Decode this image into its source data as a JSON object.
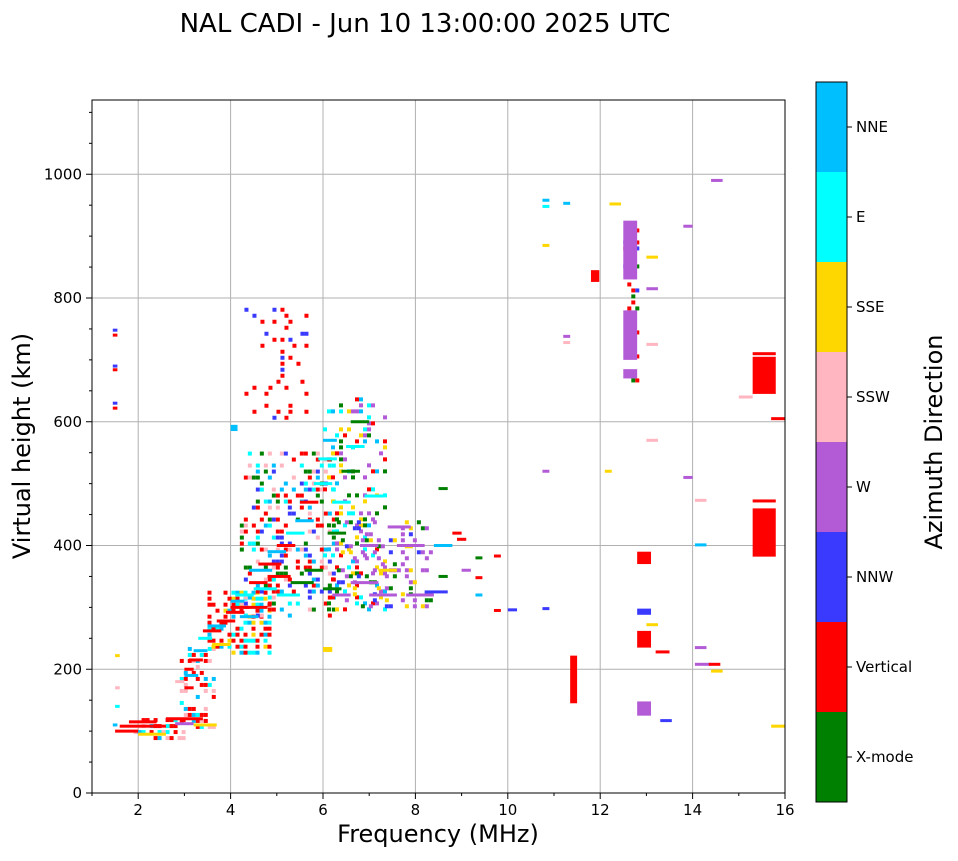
{
  "chart_data": {
    "type": "scatter",
    "title": "NAL CADI - Jun 10 13:00:00 2025 UTC",
    "xlabel": "Frequency (MHz)",
    "ylabel": "Virtual height (km)",
    "xlim": [
      1,
      16
    ],
    "ylim": [
      0,
      1120
    ],
    "xticks": [
      2,
      4,
      6,
      8,
      10,
      12,
      14,
      16
    ],
    "yticks": [
      0,
      200,
      400,
      600,
      800,
      1000
    ],
    "grid": true,
    "colorbar": {
      "label": "Azimuth Direction",
      "categories": [
        {
          "name": "X-mode",
          "color": "#008000"
        },
        {
          "name": "Vertical",
          "color": "#ff0000"
        },
        {
          "name": "NNW",
          "color": "#3a3aff"
        },
        {
          "name": "W",
          "color": "#b35ad6"
        },
        {
          "name": "SSW",
          "color": "#ffb6c1"
        },
        {
          "name": "SSE",
          "color": "#ffd700"
        },
        {
          "name": "E",
          "color": "#00ffff"
        },
        {
          "name": "NNE",
          "color": "#00bfff"
        }
      ]
    },
    "segments": [
      {
        "f1": 1.45,
        "f2": 1.55,
        "h": 748,
        "c": "NNW"
      },
      {
        "f1": 1.45,
        "f2": 1.55,
        "h": 740,
        "c": "Vertical"
      },
      {
        "f1": 1.45,
        "f2": 1.55,
        "h": 690,
        "c": "NNW"
      },
      {
        "f1": 1.45,
        "f2": 1.55,
        "h": 684,
        "c": "Vertical"
      },
      {
        "f1": 1.45,
        "f2": 1.55,
        "h": 630,
        "c": "NNW"
      },
      {
        "f1": 1.45,
        "f2": 1.55,
        "h": 622,
        "c": "Vertical"
      },
      {
        "f1": 1.45,
        "f2": 1.55,
        "h": 110,
        "c": "NNE"
      },
      {
        "f1": 1.5,
        "f2": 1.6,
        "h": 222,
        "c": "SSE"
      },
      {
        "f1": 1.5,
        "f2": 1.6,
        "h": 170,
        "c": "SSW"
      },
      {
        "f1": 1.5,
        "f2": 1.6,
        "h": 140,
        "c": "E"
      },
      {
        "f1": 1.5,
        "f2": 2.0,
        "h": 100,
        "c": "Vertical"
      },
      {
        "f1": 1.6,
        "f2": 2.6,
        "h": 108,
        "c": "Vertical"
      },
      {
        "f1": 1.8,
        "f2": 2.4,
        "h": 115,
        "c": "Vertical"
      },
      {
        "f1": 2.0,
        "f2": 2.6,
        "h": 95,
        "c": "SSE"
      },
      {
        "f1": 2.6,
        "f2": 3.4,
        "h": 120,
        "c": "Vertical"
      },
      {
        "f1": 2.8,
        "f2": 3.2,
        "h": 112,
        "c": "W"
      },
      {
        "f1": 3.2,
        "f2": 3.7,
        "h": 110,
        "c": "SSE"
      },
      {
        "f1": 2.8,
        "f2": 3.0,
        "h": 180,
        "c": "SSW"
      },
      {
        "f1": 3.0,
        "f2": 3.2,
        "h": 200,
        "c": "Vertical"
      },
      {
        "f1": 3.0,
        "f2": 3.3,
        "h": 190,
        "c": "NNE"
      },
      {
        "f1": 3.0,
        "f2": 3.2,
        "h": 170,
        "c": "Vertical"
      },
      {
        "f1": 3.1,
        "f2": 3.4,
        "h": 215,
        "c": "Vertical"
      },
      {
        "f1": 3.2,
        "f2": 3.5,
        "h": 230,
        "c": "NNE"
      },
      {
        "f1": 3.3,
        "f2": 3.6,
        "h": 250,
        "c": "E"
      },
      {
        "f1": 3.4,
        "f2": 3.8,
        "h": 262,
        "c": "Vertical"
      },
      {
        "f1": 3.5,
        "f2": 3.9,
        "h": 270,
        "c": "NNE"
      },
      {
        "f1": 3.6,
        "f2": 4.0,
        "h": 240,
        "c": "SSE"
      },
      {
        "f1": 3.7,
        "f2": 4.1,
        "h": 278,
        "c": "Vertical"
      },
      {
        "f1": 3.9,
        "f2": 4.3,
        "h": 292,
        "c": "Vertical"
      },
      {
        "f1": 4.0,
        "f2": 4.4,
        "h": 300,
        "c": "Vertical"
      },
      {
        "f1": 4.0,
        "f2": 4.3,
        "h": 310,
        "c": "NNE"
      },
      {
        "f1": 4.1,
        "f2": 4.5,
        "h": 320,
        "c": "E"
      },
      {
        "f1": 4.2,
        "f2": 4.6,
        "h": 285,
        "c": "NNE"
      },
      {
        "f1": 4.3,
        "f2": 4.8,
        "h": 300,
        "c": "Vertical"
      },
      {
        "f1": 4.4,
        "f2": 4.8,
        "h": 340,
        "c": "Vertical"
      },
      {
        "f1": 4.4,
        "f2": 4.9,
        "h": 360,
        "c": "NNE"
      },
      {
        "f1": 4.5,
        "f2": 5.0,
        "h": 330,
        "c": "E"
      },
      {
        "f1": 4.6,
        "f2": 5.1,
        "h": 370,
        "c": "Vertical"
      },
      {
        "f1": 4.8,
        "f2": 5.3,
        "h": 350,
        "c": "Vertical"
      },
      {
        "f1": 4.8,
        "f2": 5.2,
        "h": 390,
        "c": "NNE"
      },
      {
        "f1": 5.0,
        "f2": 5.4,
        "h": 400,
        "c": "Vertical"
      },
      {
        "f1": 5.0,
        "f2": 5.5,
        "h": 320,
        "c": "E"
      },
      {
        "f1": 5.2,
        "f2": 5.6,
        "h": 420,
        "c": "E"
      },
      {
        "f1": 5.3,
        "f2": 5.8,
        "h": 340,
        "c": "X-mode"
      },
      {
        "f1": 5.4,
        "f2": 5.8,
        "h": 440,
        "c": "NNE"
      },
      {
        "f1": 5.5,
        "f2": 5.9,
        "h": 470,
        "c": "Vertical"
      },
      {
        "f1": 5.6,
        "f2": 6.0,
        "h": 360,
        "c": "X-mode"
      },
      {
        "f1": 5.8,
        "f2": 6.2,
        "h": 500,
        "c": "E"
      },
      {
        "f1": 5.9,
        "f2": 6.3,
        "h": 540,
        "c": "E"
      },
      {
        "f1": 6.0,
        "f2": 6.4,
        "h": 330,
        "c": "X-mode"
      },
      {
        "f1": 6.0,
        "f2": 6.3,
        "h": 570,
        "c": "NNE"
      },
      {
        "f1": 6.1,
        "f2": 6.5,
        "h": 420,
        "c": "X-mode"
      },
      {
        "f1": 6.2,
        "f2": 6.6,
        "h": 320,
        "c": "W"
      },
      {
        "f1": 6.2,
        "f2": 6.6,
        "h": 470,
        "c": "E"
      },
      {
        "f1": 6.4,
        "f2": 6.8,
        "h": 520,
        "c": "X-mode"
      },
      {
        "f1": 6.5,
        "f2": 6.9,
        "h": 560,
        "c": "E"
      },
      {
        "f1": 6.6,
        "f2": 7.0,
        "h": 600,
        "c": "X-mode"
      },
      {
        "f1": 6.6,
        "f2": 7.2,
        "h": 340,
        "c": "W"
      },
      {
        "f1": 6.8,
        "f2": 7.2,
        "h": 400,
        "c": "W"
      },
      {
        "f1": 6.9,
        "f2": 7.3,
        "h": 480,
        "c": "E"
      },
      {
        "f1": 7.0,
        "f2": 7.6,
        "h": 320,
        "c": "W"
      },
      {
        "f1": 7.2,
        "f2": 7.6,
        "h": 360,
        "c": "SSE"
      },
      {
        "f1": 7.4,
        "f2": 7.9,
        "h": 430,
        "c": "W"
      },
      {
        "f1": 7.6,
        "f2": 8.2,
        "h": 400,
        "c": "W"
      },
      {
        "f1": 7.8,
        "f2": 8.4,
        "h": 320,
        "c": "W"
      },
      {
        "f1": 8.2,
        "f2": 8.7,
        "h": 325,
        "c": "NNW"
      },
      {
        "f1": 8.4,
        "f2": 8.8,
        "h": 400,
        "c": "NNE"
      },
      {
        "f1": 8.8,
        "f2": 9.0,
        "h": 420,
        "c": "Vertical"
      },
      {
        "f1": 8.9,
        "f2": 9.1,
        "h": 410,
        "c": "Vertical"
      },
      {
        "f1": 8.5,
        "f2": 8.7,
        "h": 492,
        "c": "X-mode"
      },
      {
        "f1": 8.5,
        "f2": 8.7,
        "h": 350,
        "c": "X-mode"
      },
      {
        "f1": 9.0,
        "f2": 9.2,
        "h": 360,
        "c": "W"
      },
      {
        "f1": 9.3,
        "f2": 9.45,
        "h": 380,
        "c": "X-mode"
      },
      {
        "f1": 9.3,
        "f2": 9.45,
        "h": 348,
        "c": "Vertical"
      },
      {
        "f1": 9.3,
        "f2": 9.45,
        "h": 320,
        "c": "NNE"
      },
      {
        "f1": 9.7,
        "f2": 9.85,
        "h": 383,
        "c": "Vertical"
      },
      {
        "f1": 9.7,
        "f2": 9.85,
        "h": 295,
        "c": "Vertical"
      },
      {
        "f1": 10.0,
        "f2": 10.2,
        "h": 296,
        "c": "NNW"
      },
      {
        "f1": 10.75,
        "f2": 10.9,
        "h": 298,
        "c": "NNW"
      },
      {
        "f1": 10.75,
        "f2": 10.9,
        "h": 520,
        "c": "W"
      },
      {
        "f1": 10.75,
        "f2": 10.9,
        "h": 885,
        "c": "SSE"
      },
      {
        "f1": 10.75,
        "f2": 10.9,
        "h": 958,
        "c": "NNE"
      },
      {
        "f1": 10.75,
        "f2": 10.9,
        "h": 948,
        "c": "E"
      },
      {
        "f1": 11.2,
        "f2": 11.35,
        "h": 953,
        "c": "NNE"
      },
      {
        "f1": 11.2,
        "f2": 11.35,
        "h": 738,
        "c": "W"
      },
      {
        "f1": 11.2,
        "f2": 11.35,
        "h": 728,
        "c": "SSW"
      },
      {
        "f1": 12.1,
        "f2": 12.25,
        "h": 520,
        "c": "SSE"
      },
      {
        "f1": 12.2,
        "f2": 12.45,
        "h": 952,
        "c": "SSE"
      },
      {
        "f1": 13.0,
        "f2": 13.25,
        "h": 866,
        "c": "SSE"
      },
      {
        "f1": 13.0,
        "f2": 13.25,
        "h": 815,
        "c": "W"
      },
      {
        "f1": 13.0,
        "f2": 13.25,
        "h": 725,
        "c": "SSW"
      },
      {
        "f1": 13.0,
        "f2": 13.25,
        "h": 570,
        "c": "SSW"
      },
      {
        "f1": 13.0,
        "f2": 13.25,
        "h": 272,
        "c": "SSE"
      },
      {
        "f1": 13.2,
        "f2": 13.5,
        "h": 228,
        "c": "Vertical"
      },
      {
        "f1": 13.3,
        "f2": 13.55,
        "h": 117,
        "c": "NNW"
      },
      {
        "f1": 13.8,
        "f2": 14.0,
        "h": 916,
        "c": "W"
      },
      {
        "f1": 13.8,
        "f2": 14.0,
        "h": 510,
        "c": "W"
      },
      {
        "f1": 14.05,
        "f2": 14.3,
        "h": 473,
        "c": "SSW"
      },
      {
        "f1": 14.05,
        "f2": 14.3,
        "h": 401,
        "c": "NNE"
      },
      {
        "f1": 14.05,
        "f2": 14.3,
        "h": 235,
        "c": "W"
      },
      {
        "f1": 14.05,
        "f2": 14.4,
        "h": 208,
        "c": "W"
      },
      {
        "f1": 14.35,
        "f2": 14.6,
        "h": 208,
        "c": "Vertical"
      },
      {
        "f1": 14.4,
        "f2": 14.65,
        "h": 197,
        "c": "SSE"
      },
      {
        "f1": 14.4,
        "f2": 14.65,
        "h": 990,
        "c": "W"
      },
      {
        "f1": 15.0,
        "f2": 15.3,
        "h": 640,
        "c": "SSW"
      },
      {
        "f1": 15.7,
        "f2": 16.0,
        "h": 605,
        "c": "Vertical"
      },
      {
        "f1": 15.7,
        "f2": 16.0,
        "h": 108,
        "c": "SSE"
      },
      {
        "f1": 15.3,
        "f2": 15.8,
        "h": 472,
        "c": "Vertical"
      },
      {
        "f1": 15.3,
        "f2": 15.8,
        "h": 710,
        "c": "Vertical"
      }
    ],
    "blocks": [
      {
        "f1": 11.35,
        "f2": 11.5,
        "h1": 145,
        "h2": 222,
        "c": "Vertical"
      },
      {
        "f1": 11.8,
        "f2": 11.98,
        "h1": 826,
        "h2": 845,
        "c": "Vertical"
      },
      {
        "f1": 12.5,
        "f2": 12.8,
        "h1": 830,
        "h2": 925,
        "c": "W"
      },
      {
        "f1": 12.5,
        "f2": 12.8,
        "h1": 700,
        "h2": 780,
        "c": "W"
      },
      {
        "f1": 12.5,
        "f2": 12.8,
        "h1": 670,
        "h2": 685,
        "c": "W"
      },
      {
        "f1": 12.8,
        "f2": 13.1,
        "h1": 370,
        "h2": 390,
        "c": "Vertical"
      },
      {
        "f1": 12.8,
        "f2": 13.1,
        "h1": 288,
        "h2": 298,
        "c": "NNW"
      },
      {
        "f1": 12.8,
        "f2": 13.1,
        "h1": 235,
        "h2": 262,
        "c": "Vertical"
      },
      {
        "f1": 12.8,
        "f2": 13.1,
        "h1": 125,
        "h2": 148,
        "c": "W"
      },
      {
        "f1": 15.3,
        "f2": 15.8,
        "h1": 645,
        "h2": 705,
        "c": "Vertical"
      },
      {
        "f1": 15.3,
        "f2": 15.8,
        "h1": 382,
        "h2": 460,
        "c": "Vertical"
      },
      {
        "f1": 4.0,
        "f2": 4.15,
        "h1": 585,
        "h2": 595,
        "c": "NNE"
      },
      {
        "f1": 6.0,
        "f2": 6.2,
        "h1": 228,
        "h2": 236,
        "c": "SSE"
      }
    ],
    "clusters": [
      {
        "f1": 1.9,
        "f2": 3.0,
        "h1": 92,
        "h2": 125,
        "p": 0.55,
        "c": [
          "Vertical",
          "Vertical",
          "Vertical",
          "SSW",
          "E",
          "NNE"
        ]
      },
      {
        "f1": 2.9,
        "f2": 3.6,
        "h1": 110,
        "h2": 245,
        "p": 0.45,
        "c": [
          "Vertical",
          "NNE",
          "Vertical",
          "E",
          "SSW"
        ]
      },
      {
        "f1": 3.5,
        "f2": 4.8,
        "h1": 230,
        "h2": 330,
        "p": 0.5,
        "c": [
          "Vertical",
          "NNE",
          "E",
          "Vertical",
          "SSE"
        ]
      },
      {
        "f1": 4.3,
        "f2": 5.6,
        "h1": 600,
        "h2": 790,
        "p": 0.12,
        "c": [
          "Vertical",
          "Vertical",
          "Vertical",
          "NNW"
        ]
      },
      {
        "f1": 4.2,
        "f2": 6.2,
        "h1": 290,
        "h2": 560,
        "p": 0.32,
        "c": [
          "Vertical",
          "NNE",
          "E",
          "X-mode",
          "Vertical",
          "NNW",
          "SSW"
        ]
      },
      {
        "f1": 6.0,
        "f2": 7.3,
        "h1": 300,
        "h2": 640,
        "p": 0.25,
        "c": [
          "E",
          "X-mode",
          "NNE",
          "SSE",
          "Vertical",
          "W"
        ]
      },
      {
        "f1": 6.3,
        "f2": 8.3,
        "h1": 305,
        "h2": 450,
        "p": 0.28,
        "c": [
          "W",
          "W",
          "W",
          "SSE",
          "X-mode",
          "NNW"
        ]
      },
      {
        "f1": 12.5,
        "f2": 12.8,
        "h1": 670,
        "h2": 925,
        "p": 0.25,
        "c": [
          "Vertical",
          "NNW",
          "X-mode"
        ]
      }
    ]
  }
}
